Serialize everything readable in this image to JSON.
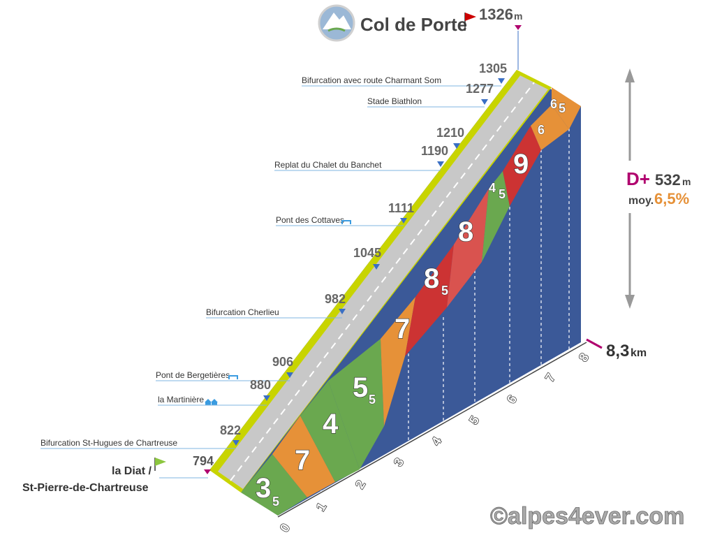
{
  "summit": {
    "name": "Col de Porte",
    "altitude": "1326",
    "unit": "m"
  },
  "start": {
    "line1": "la Diat /",
    "line2": "St-Pierre-de-Chartreuse",
    "altitude": "794"
  },
  "stats": {
    "gain_label": "D+",
    "gain_value": "532",
    "gain_unit": "m",
    "avg_label": "moy.",
    "avg_value": "6,5%"
  },
  "distance": {
    "value": "8,3",
    "unit": "km"
  },
  "copyright": "©alpes4ever.com",
  "waypoints": [
    {
      "label": "Bifurcation avec route Charmant Som",
      "altitude": "1305"
    },
    {
      "label": "Stade Biathlon",
      "altitude": "1277"
    },
    {
      "label": "",
      "altitude": "1210"
    },
    {
      "label": "Replat du Chalet du Banchet",
      "altitude": "1190"
    },
    {
      "label": "Pont des Cottaves",
      "altitude": "1111"
    },
    {
      "label": "",
      "altitude": "1045"
    },
    {
      "label": "Bifurcation Cherlieu",
      "altitude": "982"
    },
    {
      "label": "Pont de Bergetières",
      "altitude": "906"
    },
    {
      "label": "la Martinière",
      "altitude": "880"
    },
    {
      "label": "Bifurcation St-Hugues de Chartreuse",
      "altitude": "822"
    }
  ],
  "km_ticks": [
    "0",
    "1",
    "2",
    "3",
    "4",
    "5",
    "6",
    "7",
    "8"
  ],
  "segments": [
    {
      "grade": "3",
      "grade_dec": "5",
      "color": "#6aa84f"
    },
    {
      "grade": "7",
      "grade_dec": "",
      "color": "#e69138"
    },
    {
      "grade": "4",
      "grade_dec": "",
      "color": "#6aa84f"
    },
    {
      "grade": "5",
      "grade_dec": "5",
      "color": "#6aa84f"
    },
    {
      "grade": "7",
      "grade_dec": "",
      "color": "#e69138"
    },
    {
      "grade": "8",
      "grade_dec": "5",
      "color": "#cc3333"
    },
    {
      "grade": "8",
      "grade_dec": "",
      "color": "#d9534f"
    },
    {
      "grade": "4",
      "grade_dec": "5",
      "color": "#6aa84f"
    },
    {
      "grade": "9",
      "grade_dec": "",
      "color": "#cc3333"
    },
    {
      "grade": "6",
      "grade_dec": "",
      "color": "#e69138"
    },
    {
      "grade": "6",
      "grade_dec": "5",
      "color": "#e69138"
    }
  ],
  "colors": {
    "wall": "#3b5998",
    "road": "#c8c8c8",
    "verge": "#c8d400",
    "magenta": "#b0006e",
    "orange": "#e69138",
    "flag_red": "#cc0000",
    "flag_green": "#8cc63f",
    "marker_blue": "#3a6fc4"
  }
}
